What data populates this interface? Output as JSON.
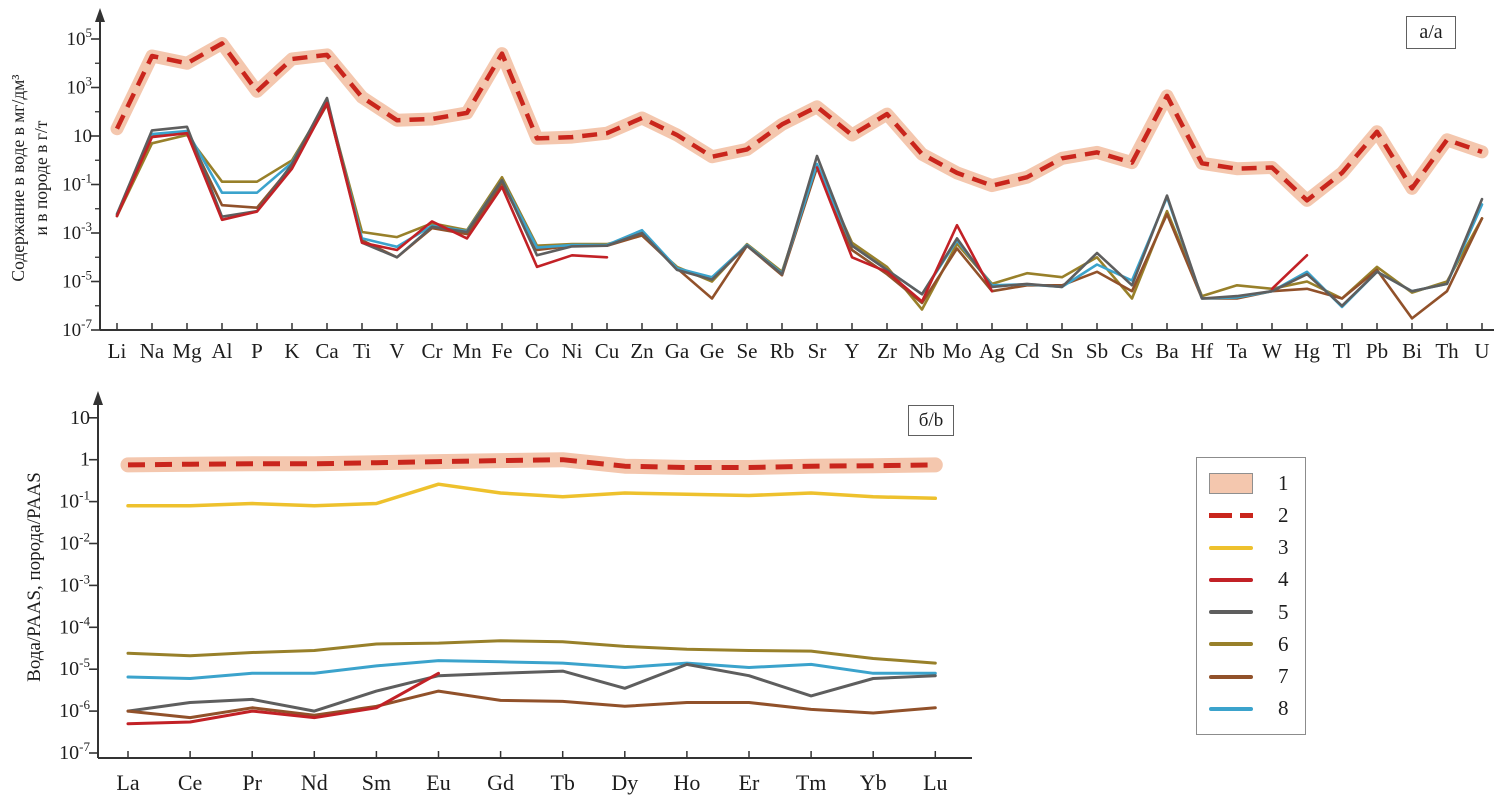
{
  "figure": {
    "background": "#ffffff",
    "panel_a_label": "a/a",
    "panel_b_label": "б/b"
  },
  "legend": {
    "position": "outside-right",
    "items": [
      {
        "label": "1",
        "swatch": "band",
        "color": "#f4c7ae",
        "border_color": "#8f8f8f"
      },
      {
        "label": "2",
        "swatch": "dashed",
        "color": "#c9251c"
      },
      {
        "label": "3",
        "swatch": "line",
        "color": "#eec12d"
      },
      {
        "label": "4",
        "swatch": "line",
        "color": "#c22126"
      },
      {
        "label": "5",
        "swatch": "line",
        "color": "#5e5e5e"
      },
      {
        "label": "6",
        "swatch": "line",
        "color": "#98802a"
      },
      {
        "label": "7",
        "swatch": "line",
        "color": "#91512a"
      },
      {
        "label": "8",
        "swatch": "line",
        "color": "#3ba3cc"
      }
    ]
  },
  "chart_data": [
    {
      "id": "a",
      "type": "line",
      "title": "",
      "panel_label": "a/a",
      "xlabel": "",
      "ylabel": "Содержание в воде в мг/дм³ и в породе в г/т",
      "ylabel_lines": [
        "Содержание в воде в мг/дм³",
        "и в породе в г/т"
      ],
      "yscale": "log",
      "ylim": [
        1e-07,
        100000
      ],
      "grid": false,
      "categories": [
        "Li",
        "Na",
        "Mg",
        "Al",
        "P",
        "K",
        "Ca",
        "Ti",
        "V",
        "Cr",
        "Mn",
        "Fe",
        "Co",
        "Ni",
        "Cu",
        "Zn",
        "Ga",
        "Ge",
        "Se",
        "Rb",
        "Sr",
        "Y",
        "Zr",
        "Nb",
        "Mo",
        "Ag",
        "Cd",
        "Sn",
        "Sb",
        "Cs",
        "Ba",
        "Hf",
        "Ta",
        "W",
        "Hg",
        "Tl",
        "Pb",
        "Bi",
        "Th",
        "U"
      ],
      "y_ticks": [
        {
          "value": 100000.0,
          "base": "10",
          "exp": "5"
        },
        {
          "value": 1000.0,
          "base": "10",
          "exp": "3"
        },
        {
          "value": 10.0,
          "base": "10",
          "exp": ""
        },
        {
          "value": 0.1,
          "base": "10",
          "exp": "-1"
        },
        {
          "value": 0.001,
          "base": "10",
          "exp": "-3"
        },
        {
          "value": 1e-05,
          "base": "10",
          "exp": "-5"
        },
        {
          "value": 1e-07,
          "base": "10",
          "exp": "-7"
        }
      ],
      "y_minor_ticks": [
        10000.0,
        100.0,
        1,
        0.01,
        0.0001,
        1e-06
      ],
      "series": [
        {
          "id": "1",
          "name": "1",
          "role": "band",
          "follows": "2",
          "color": "#f4c7ae"
        },
        {
          "id": "2",
          "name": "2",
          "role": "line",
          "style": "dashed",
          "color": "#c9251c",
          "values": [
            20,
            20000,
            10000,
            65000,
            700,
            15000,
            22000,
            400,
            45,
            50,
            90,
            25000,
            8,
            9,
            13,
            55,
            11,
            1.4,
            2.8,
            30,
            160,
            11,
            80,
            1.8,
            0.3,
            0.09,
            0.2,
            1.2,
            2.1,
            0.8,
            450,
            0.75,
            0.45,
            0.5,
            0.022,
            0.3,
            15,
            0.07,
            7,
            2.2
          ]
        },
        {
          "id": "6",
          "name": "6",
          "role": "line",
          "style": "solid",
          "color": "#98802a",
          "values": [
            0.005,
            5,
            11,
            0.13,
            0.13,
            1.0,
            250,
            0.0011,
            0.00068,
            0.0025,
            0.0013,
            0.2,
            0.0003,
            0.00035,
            0.00035,
            0.0008,
            4e-05,
            1e-05,
            0.00035,
            2.5e-05,
            0.6,
            0.0004,
            4e-05,
            7e-07,
            0.00036,
            8e-06,
            2.2e-05,
            1.5e-05,
            0.0001,
            2e-06,
            0.008,
            2.5e-06,
            7e-06,
            5e-06,
            1e-05,
            2e-06,
            4e-05,
            3.5e-06,
            1e-05,
            0.004
          ]
        },
        {
          "id": "7",
          "name": "7",
          "role": "line",
          "style": "solid",
          "color": "#91512a",
          "values": [
            0.005,
            10,
            14,
            0.014,
            0.011,
            0.6,
            200,
            0.0005,
            0.0001,
            0.0016,
            0.0009,
            0.12,
            0.0002,
            0.0003,
            0.0003,
            0.0008,
            3.5e-05,
            2e-06,
            0.0003,
            1.8e-05,
            0.5,
            0.0002,
            2e-05,
            1.3e-06,
            0.00023,
            4e-06,
            7e-06,
            7e-06,
            2.5e-05,
            4e-06,
            0.006,
            2e-06,
            2e-06,
            4e-06,
            5e-06,
            2e-06,
            3e-05,
            3e-07,
            4e-06,
            0.004
          ]
        },
        {
          "id": "8",
          "name": "8",
          "role": "line",
          "style": "solid",
          "color": "#3ba3cc",
          "values": [
            0.006,
            12,
            16,
            0.046,
            0.046,
            0.8,
            280,
            0.0006,
            0.00027,
            0.002,
            0.0012,
            0.15,
            0.00025,
            0.00032,
            0.00032,
            0.0013,
            3.5e-05,
            1.5e-05,
            0.00032,
            2.2e-05,
            0.7,
            0.0003,
            3e-05,
            3e-06,
            0.0005,
            7e-06,
            7.7e-06,
            6e-06,
            5e-05,
            1.1e-05,
            0.03,
            2e-06,
            2.2e-06,
            4e-06,
            2.5e-05,
            9e-07,
            2.5e-05,
            4e-06,
            8e-06,
            0.015
          ]
        },
        {
          "id": "5",
          "name": "5",
          "role": "line",
          "style": "solid",
          "color": "#5e5e5e",
          "values": [
            0.006,
            17,
            24,
            0.0047,
            0.008,
            0.7,
            370,
            0.0004,
            0.0001,
            0.0018,
            0.0011,
            0.15,
            0.00012,
            0.00028,
            0.0003,
            0.001,
            3e-05,
            1.2e-05,
            0.0003,
            2e-05,
            1.5,
            0.0003,
            3e-05,
            3e-06,
            0.0006,
            6e-06,
            8e-06,
            6e-06,
            0.00015,
            7e-06,
            0.035,
            2e-06,
            2.5e-06,
            4e-06,
            2e-05,
            1e-06,
            2.5e-05,
            4e-06,
            8e-06,
            0.025
          ]
        },
        {
          "id": "4",
          "name": "4",
          "role": "line",
          "style": "solid",
          "color": "#c22126",
          "values": [
            0.005,
            9,
            13,
            0.0035,
            0.0076,
            0.45,
            230,
            0.0004,
            0.0002,
            0.003,
            0.0006,
            0.08,
            4e-05,
            0.00012,
            0.0001,
            null,
            null,
            null,
            null,
            null,
            0.5,
            0.0001,
            2.5e-05,
            1.5e-06,
            0.0021,
            4e-06,
            null,
            null,
            null,
            null,
            null,
            null,
            null,
            5e-06,
            0.00012,
            null,
            null,
            null,
            null,
            null
          ]
        }
      ]
    },
    {
      "id": "b",
      "type": "line",
      "title": "",
      "panel_label": "б/b",
      "xlabel": "",
      "ylabel": "Вода/PAAS, порода/PAAS",
      "ylabel_lines": [
        "Вода/PAAS, порода/PAAS"
      ],
      "yscale": "log",
      "ylim": [
        1e-07,
        10
      ],
      "grid": false,
      "categories": [
        "La",
        "Ce",
        "Pr",
        "Nd",
        "Sm",
        "Eu",
        "Gd",
        "Tb",
        "Dy",
        "Ho",
        "Er",
        "Tm",
        "Yb",
        "Lu"
      ],
      "y_ticks": [
        {
          "value": 10,
          "base": "10",
          "exp": ""
        },
        {
          "value": 1,
          "base": "1",
          "exp": ""
        },
        {
          "value": 0.1,
          "base": "10",
          "exp": "-1"
        },
        {
          "value": 0.01,
          "base": "10",
          "exp": "-2"
        },
        {
          "value": 0.001,
          "base": "10",
          "exp": "-3"
        },
        {
          "value": 0.0001,
          "base": "10",
          "exp": "-4"
        },
        {
          "value": 1e-05,
          "base": "10",
          "exp": "-5"
        },
        {
          "value": 1e-06,
          "base": "10",
          "exp": "-6"
        },
        {
          "value": 1e-07,
          "base": "10",
          "exp": "-7"
        }
      ],
      "y_minor_ticks": [],
      "series": [
        {
          "id": "1",
          "name": "1",
          "role": "band",
          "follows": "2",
          "color": "#f4c7ae"
        },
        {
          "id": "2",
          "name": "2",
          "role": "line",
          "style": "dashed",
          "color": "#c9251c",
          "values": [
            0.75,
            0.78,
            0.8,
            0.8,
            0.85,
            0.9,
            0.95,
            1.0,
            0.7,
            0.65,
            0.65,
            0.7,
            0.72,
            0.75
          ]
        },
        {
          "id": "3",
          "name": "3",
          "role": "line",
          "style": "solid",
          "color": "#eec12d",
          "width": 3.5,
          "values": [
            0.08,
            0.08,
            0.09,
            0.08,
            0.09,
            0.26,
            0.16,
            0.13,
            0.16,
            0.15,
            0.14,
            0.16,
            0.13,
            0.12
          ]
        },
        {
          "id": "6",
          "name": "6",
          "role": "line",
          "style": "solid",
          "color": "#98802a",
          "values": [
            2.4e-05,
            2.1e-05,
            2.5e-05,
            2.8e-05,
            4e-05,
            4.2e-05,
            4.8e-05,
            4.5e-05,
            3.5e-05,
            3e-05,
            2.8e-05,
            2.7e-05,
            1.8e-05,
            1.4e-05
          ]
        },
        {
          "id": "8",
          "name": "8",
          "role": "line",
          "style": "solid",
          "color": "#3ba3cc",
          "values": [
            6.5e-06,
            6e-06,
            8e-06,
            8e-06,
            1.2e-05,
            1.6e-05,
            1.5e-05,
            1.4e-05,
            1.1e-05,
            1.4e-05,
            1.1e-05,
            1.3e-05,
            8e-06,
            8e-06
          ]
        },
        {
          "id": "5",
          "name": "5",
          "role": "line",
          "style": "solid",
          "color": "#5e5e5e",
          "values": [
            1e-06,
            1.6e-06,
            1.9e-06,
            1e-06,
            3e-06,
            7e-06,
            8e-06,
            9e-06,
            3.5e-06,
            1.3e-05,
            7e-06,
            2.3e-06,
            6e-06,
            7e-06
          ]
        },
        {
          "id": "7",
          "name": "7",
          "role": "line",
          "style": "solid",
          "color": "#91512a",
          "values": [
            1e-06,
            7e-07,
            1.2e-06,
            8e-07,
            1.3e-06,
            3e-06,
            1.8e-06,
            1.7e-06,
            1.3e-06,
            1.6e-06,
            1.6e-06,
            1.1e-06,
            9e-07,
            1.2e-06
          ]
        },
        {
          "id": "4",
          "name": "4",
          "role": "line",
          "style": "solid",
          "color": "#c22126",
          "values": [
            5e-07,
            5.5e-07,
            1e-06,
            7e-07,
            1.2e-06,
            8e-06,
            null,
            null,
            null,
            null,
            null,
            null,
            null,
            null
          ]
        }
      ]
    }
  ]
}
